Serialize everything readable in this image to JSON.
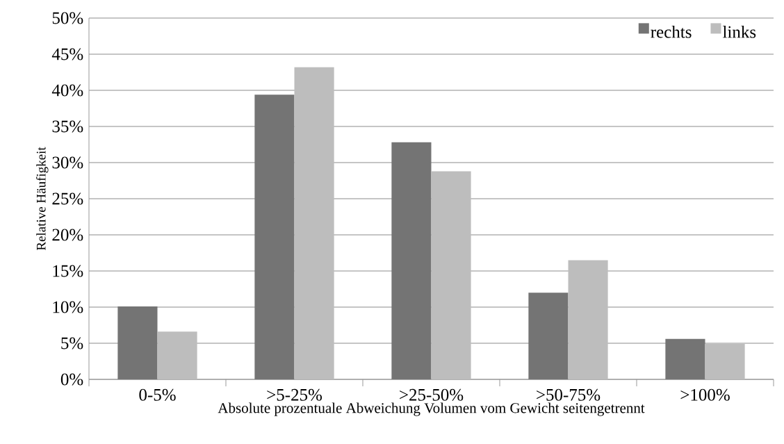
{
  "chart_data": {
    "type": "bar",
    "xlabel": "Absolute prozentuale Abweichung Volumen vom Gewicht seitengetrennt",
    "ylabel": "Relative Häufigkeit",
    "categories": [
      "0-5%",
      ">5-25%",
      ">25-50%",
      ">50-75%",
      ">100%"
    ],
    "series": [
      {
        "name": "rechts",
        "color": "#747474",
        "values": [
          10.1,
          39.4,
          32.8,
          12.0,
          5.6
        ]
      },
      {
        "name": "links",
        "color": "#bdbdbd",
        "values": [
          6.6,
          43.2,
          28.8,
          16.5,
          4.9
        ]
      }
    ],
    "ylim": [
      0,
      50
    ],
    "yticks": [
      {
        "value": 0,
        "label": "0%"
      },
      {
        "value": 5,
        "label": "5%"
      },
      {
        "value": 10,
        "label": "10%"
      },
      {
        "value": 15,
        "label": "15%"
      },
      {
        "value": 20,
        "label": "20%"
      },
      {
        "value": 25,
        "label": "25%"
      },
      {
        "value": 30,
        "label": "30%"
      },
      {
        "value": 35,
        "label": "35%"
      },
      {
        "value": 40,
        "label": "40%"
      },
      {
        "value": 45,
        "label": "45%"
      },
      {
        "value": 50,
        "label": "50%"
      }
    ],
    "grid": "y",
    "legend": "top right"
  }
}
